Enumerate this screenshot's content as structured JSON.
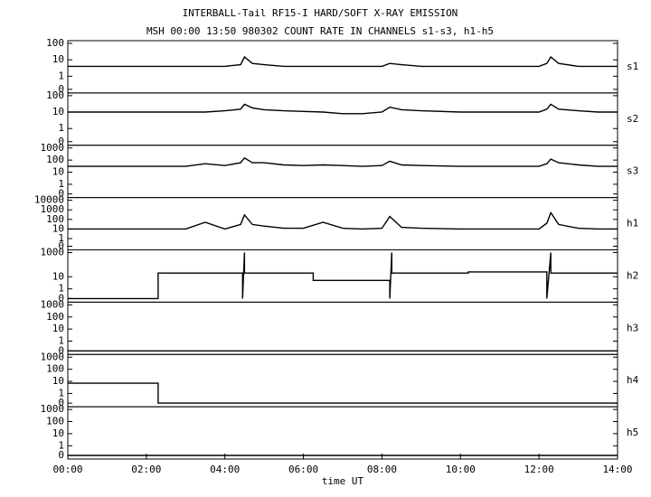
{
  "title": "INTERBALL-Tail RF15-I HARD/SOFT X-RAY EMISSION",
  "subtitle": "MSH 00:00 13:50 980302  COUNT RATE IN CHANNELS s1-s3, h1-h5",
  "chart_data": [
    {
      "type": "line",
      "label": "s1",
      "scale": "symlog",
      "xlim": [
        0,
        14
      ],
      "ylim": [
        0,
        100
      ],
      "yticks": [
        0,
        1,
        10,
        100
      ],
      "x": [
        0,
        0.5,
        1,
        1.5,
        2,
        2.5,
        3,
        3.5,
        4,
        4.4,
        4.5,
        4.7,
        5,
        5.5,
        6,
        6.5,
        7,
        7.5,
        8,
        8.2,
        8.5,
        9,
        10,
        11,
        12,
        12.2,
        12.3,
        12.5,
        13,
        13.5,
        14
      ],
      "series": [
        {
          "color": "#000000",
          "values": [
            4,
            4,
            4,
            4,
            4,
            4,
            4,
            4,
            4,
            5,
            15,
            6,
            5,
            4,
            4,
            4,
            4,
            4,
            4,
            6,
            5,
            4,
            4,
            4,
            4,
            6,
            15,
            6,
            4,
            4,
            4
          ]
        }
      ]
    },
    {
      "type": "line",
      "label": "s2",
      "scale": "symlog",
      "xlim": [
        0,
        14
      ],
      "ylim": [
        0,
        100
      ],
      "yticks": [
        0,
        1,
        10,
        100
      ],
      "x": [
        0,
        0.5,
        1,
        1.5,
        2,
        2.5,
        3,
        3.5,
        4,
        4.4,
        4.5,
        4.7,
        5,
        5.5,
        6,
        6.5,
        7,
        7.5,
        8,
        8.2,
        8.5,
        9,
        10,
        11,
        12,
        12.2,
        12.3,
        12.5,
        13,
        13.5,
        14
      ],
      "series": [
        {
          "color": "#000000",
          "values": [
            10,
            10,
            10,
            10,
            10,
            10,
            10,
            10,
            12,
            15,
            30,
            18,
            14,
            12,
            11,
            10,
            8,
            8,
            10,
            20,
            14,
            12,
            10,
            10,
            10,
            15,
            30,
            15,
            12,
            10,
            10
          ]
        }
      ]
    },
    {
      "type": "line",
      "label": "s3",
      "scale": "symlog",
      "xlim": [
        0,
        14
      ],
      "ylim": [
        0,
        1000
      ],
      "yticks": [
        0,
        1,
        10,
        100,
        1000
      ],
      "x": [
        0,
        0.5,
        1,
        1.5,
        2,
        2.5,
        3,
        3.5,
        4,
        4.4,
        4.5,
        4.7,
        5,
        5.5,
        6,
        6.5,
        7,
        7.5,
        8,
        8.2,
        8.5,
        9,
        10,
        11,
        12,
        12.2,
        12.3,
        12.5,
        13,
        13.5,
        14
      ],
      "series": [
        {
          "color": "#000000",
          "values": [
            30,
            30,
            30,
            30,
            30,
            30,
            30,
            50,
            35,
            60,
            150,
            60,
            60,
            40,
            35,
            40,
            35,
            30,
            35,
            80,
            40,
            35,
            30,
            30,
            30,
            50,
            120,
            60,
            40,
            30,
            30
          ]
        }
      ]
    },
    {
      "type": "line",
      "label": "h1",
      "scale": "symlog",
      "xlim": [
        0,
        14
      ],
      "ylim": [
        0,
        10000
      ],
      "yticks": [
        0,
        1,
        10,
        100,
        1000,
        10000
      ],
      "x": [
        0,
        0.5,
        1,
        1.5,
        2,
        2.5,
        3,
        3.5,
        4,
        4.4,
        4.5,
        4.7,
        5,
        5.5,
        6,
        6.5,
        7,
        7.5,
        8,
        8.2,
        8.5,
        9,
        10,
        11,
        12,
        12.2,
        12.3,
        12.5,
        13,
        13.5,
        14
      ],
      "series": [
        {
          "color": "#000000",
          "values": [
            10,
            10,
            10,
            10,
            10,
            10,
            10,
            50,
            10,
            30,
            300,
            30,
            20,
            12,
            12,
            50,
            12,
            10,
            12,
            200,
            15,
            12,
            10,
            10,
            10,
            40,
            500,
            30,
            12,
            10,
            10
          ]
        }
      ]
    },
    {
      "type": "line",
      "label": "h2",
      "scale": "symlog",
      "xlim": [
        0,
        14
      ],
      "ylim": [
        0,
        1000
      ],
      "yticks": [
        0,
        1,
        10,
        1000
      ],
      "x": [
        0,
        2.3,
        2.3,
        4.45,
        4.45,
        4.5,
        4.5,
        6.25,
        6.25,
        8.2,
        8.2,
        8.25,
        8.25,
        10.2,
        10.2,
        12.2,
        12.2,
        12.3,
        12.3,
        14
      ],
      "series": [
        {
          "color": "#000000",
          "values": [
            0,
            0,
            20,
            20,
            0,
            1000,
            20,
            20,
            5,
            5,
            0,
            1000,
            20,
            20,
            25,
            25,
            0,
            1000,
            20,
            20
          ]
        }
      ]
    },
    {
      "type": "line",
      "label": "h3",
      "scale": "symlog",
      "xlim": [
        0,
        14
      ],
      "ylim": [
        0,
        1000
      ],
      "yticks": [
        0,
        1,
        10,
        100,
        1000
      ],
      "x": [
        0,
        14
      ],
      "series": [
        {
          "color": "#000000",
          "values": [
            0,
            0
          ]
        }
      ]
    },
    {
      "type": "line",
      "label": "h4",
      "scale": "symlog",
      "xlim": [
        0,
        14
      ],
      "ylim": [
        0,
        1000
      ],
      "yticks": [
        0,
        1,
        10,
        100,
        1000
      ],
      "x": [
        0,
        2.3,
        2.3,
        14
      ],
      "series": [
        {
          "color": "#000000",
          "values": [
            7,
            7,
            0,
            0
          ]
        }
      ]
    },
    {
      "type": "line",
      "label": "h5",
      "scale": "symlog",
      "xlim": [
        0,
        14
      ],
      "ylim": [
        0,
        1000
      ],
      "yticks": [
        0,
        1,
        10,
        100,
        1000
      ],
      "x": [
        0,
        14
      ],
      "series": [
        {
          "color": "#000000",
          "values": [
            0,
            0
          ]
        }
      ],
      "xlabel": "time UT",
      "xticks": [
        {
          "value": 0,
          "label": "00:00"
        },
        {
          "value": 2,
          "label": "02:00"
        },
        {
          "value": 4,
          "label": "04:00"
        },
        {
          "value": 6,
          "label": "06:00"
        },
        {
          "value": 8,
          "label": "08:00"
        },
        {
          "value": 10,
          "label": "10:00"
        },
        {
          "value": 12,
          "label": "12:00"
        },
        {
          "value": 14,
          "label": "14:00"
        }
      ]
    }
  ]
}
